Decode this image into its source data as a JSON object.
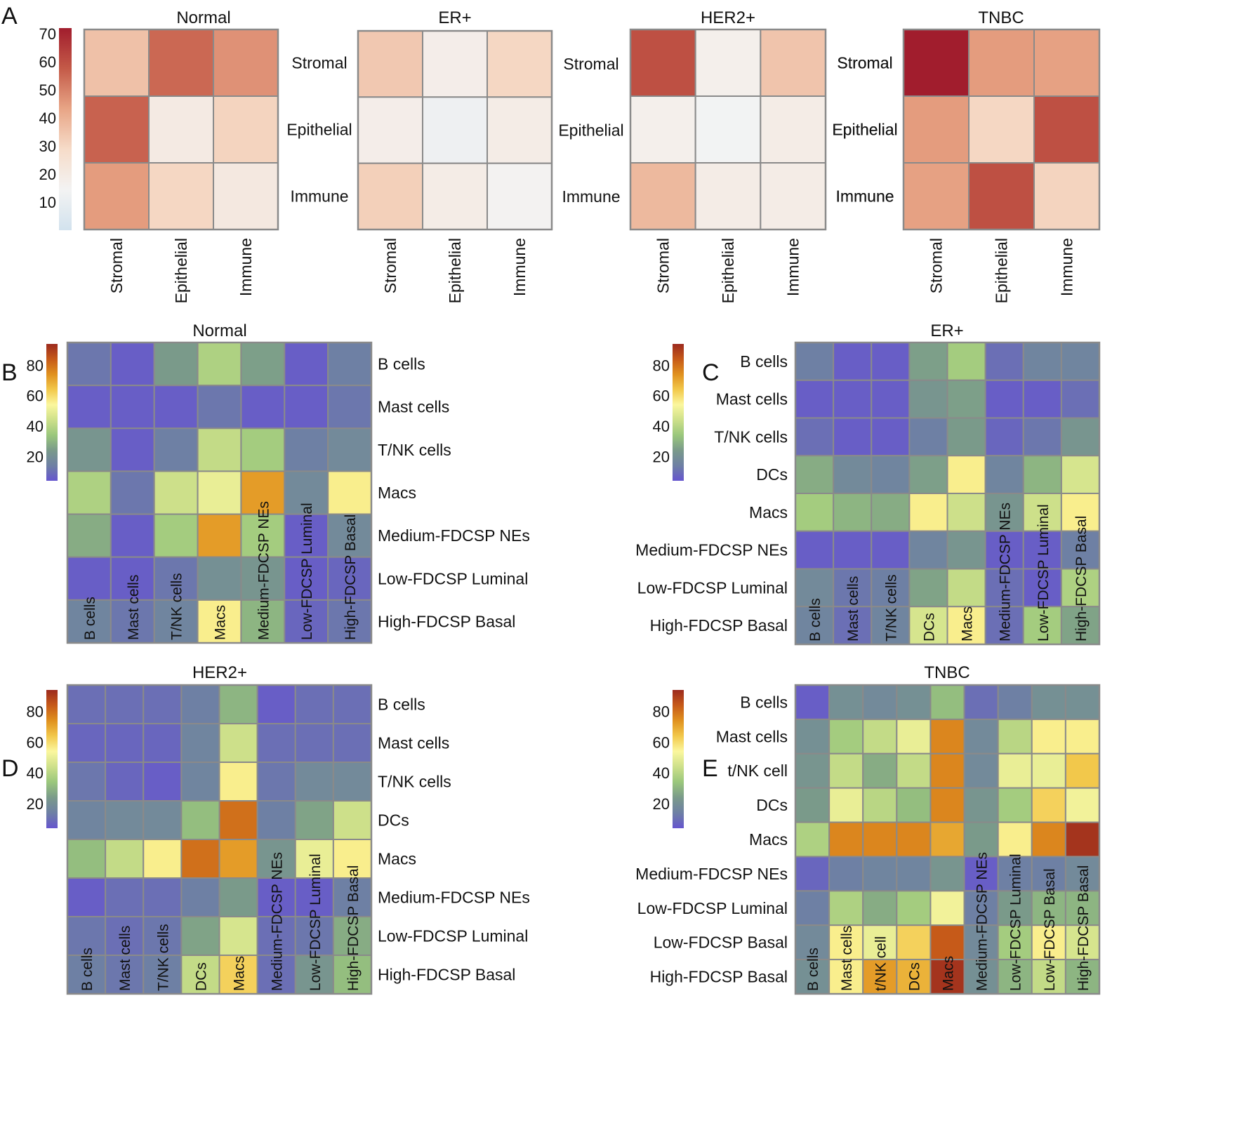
{
  "colorbar_ticks": {
    "A": [
      10,
      20,
      30,
      40,
      50,
      60,
      70
    ],
    "BCDE": [
      20,
      40,
      60,
      80
    ]
  },
  "chart_data": [
    {
      "type": "heatmap",
      "panel": "A",
      "title": "Normal",
      "rows": [
        "Stromal",
        "Epithelial",
        "Immune"
      ],
      "cols": [
        "Stromal",
        "Epithelial",
        "Immune"
      ],
      "values": [
        [
          36,
          55,
          47
        ],
        [
          56,
          20,
          31
        ],
        [
          45,
          30,
          21
        ]
      ],
      "colorbar": {
        "range": [
          0,
          72
        ],
        "ticks": [
          10,
          20,
          30,
          40,
          50,
          60,
          70
        ],
        "colors": [
          "#d2e2ee",
          "#f3f3f3",
          "#f6dcc9",
          "#e8a586",
          "#c45a48",
          "#a11d2d"
        ]
      }
    },
    {
      "type": "heatmap",
      "panel": "A",
      "title": "ER+",
      "rows": [
        "Stromal",
        "Epithelial",
        "Immune"
      ],
      "cols": [
        "Stromal",
        "Epithelial",
        "Immune"
      ],
      "values": [
        [
          34,
          18,
          30
        ],
        [
          18,
          12,
          19
        ],
        [
          32,
          19,
          15
        ]
      ],
      "colorbar": {
        "range": [
          0,
          72
        ],
        "colors": [
          "#d2e2ee",
          "#f3f3f3",
          "#f6dcc9",
          "#e8a586",
          "#c45a48",
          "#a11d2d"
        ]
      }
    },
    {
      "type": "heatmap",
      "panel": "A",
      "title": "HER2+",
      "rows": [
        "Stromal",
        "Epithelial",
        "Immune"
      ],
      "cols": [
        "Stromal",
        "Epithelial",
        "Immune"
      ],
      "values": [
        [
          60,
          17,
          35
        ],
        [
          17,
          14,
          19
        ],
        [
          38,
          19,
          19
        ]
      ],
      "colorbar": {
        "range": [
          0,
          72
        ],
        "colors": [
          "#d2e2ee",
          "#f3f3f3",
          "#f6dcc9",
          "#e8a586",
          "#c45a48",
          "#a11d2d"
        ]
      }
    },
    {
      "type": "heatmap",
      "panel": "A",
      "title": "TNBC",
      "rows": [
        "Stromal",
        "Epithelial",
        "Immune"
      ],
      "cols": [
        "Stromal",
        "Epithelial",
        "Immune"
      ],
      "values": [
        [
          72,
          45,
          44
        ],
        [
          45,
          30,
          60
        ],
        [
          44,
          60,
          31
        ]
      ],
      "colorbar": {
        "range": [
          0,
          72
        ],
        "colors": [
          "#d2e2ee",
          "#f3f3f3",
          "#f6dcc9",
          "#e8a586",
          "#c45a48",
          "#a11d2d"
        ]
      }
    },
    {
      "type": "heatmap",
      "panel": "B",
      "title": "Normal",
      "rows": [
        "B cells",
        "Mast cells",
        "T/NK cells",
        "Macs",
        "Medium-FDCSP NEs",
        "Low-FDCSP Luminal",
        "High-FDCSP Basal"
      ],
      "cols": [
        "B cells",
        "Mast cells",
        "T/NK cells",
        "Macs",
        "Medium-FDCSP NEs",
        "Low-FDCSP Luminal",
        "High-FDCSP Basal"
      ],
      "values": [
        [
          12,
          6,
          24,
          38,
          25,
          6,
          14
        ],
        [
          6,
          6,
          6,
          12,
          6,
          6,
          12
        ],
        [
          22,
          6,
          14,
          42,
          36,
          14,
          18
        ],
        [
          38,
          12,
          44,
          50,
          72,
          18,
          56
        ],
        [
          28,
          6,
          36,
          72,
          36,
          6,
          18
        ],
        [
          6,
          6,
          12,
          20,
          22,
          6,
          8
        ],
        [
          16,
          12,
          16,
          56,
          30,
          8,
          12
        ]
      ],
      "colorbar": {
        "range": [
          4,
          94
        ],
        "ticks": [
          20,
          40,
          60,
          80
        ],
        "colors": [
          "#6655cf",
          "#6e80a4",
          "#7a9a8a",
          "#9ac77c",
          "#cde08a",
          "#fbf79e",
          "#f2c84b",
          "#e0911f",
          "#c65a19",
          "#9c2a1e"
        ]
      }
    },
    {
      "type": "heatmap",
      "panel": "C",
      "title": "ER+",
      "rows": [
        "B cells",
        "Mast cells",
        "T/NK cells",
        "DCs",
        "Macs",
        "Medium-FDCSP NEs",
        "Low-FDCSP Luminal",
        "High-FDCSP Basal"
      ],
      "cols": [
        "B cells",
        "Mast cells",
        "T/NK cells",
        "DCs",
        "Macs",
        "Medium-FDCSP NEs",
        "Low-FDCSP Luminal",
        "High-FDCSP Basal"
      ],
      "values": [
        [
          14,
          6,
          6,
          25,
          36,
          10,
          16,
          16
        ],
        [
          6,
          6,
          6,
          22,
          25,
          6,
          6,
          10
        ],
        [
          10,
          6,
          6,
          14,
          24,
          8,
          12,
          22
        ],
        [
          28,
          18,
          16,
          25,
          56,
          16,
          30,
          46
        ],
        [
          36,
          30,
          28,
          56,
          44,
          22,
          44,
          56
        ],
        [
          6,
          6,
          6,
          16,
          22,
          6,
          6,
          14
        ],
        [
          18,
          12,
          14,
          26,
          42,
          10,
          6,
          38
        ],
        [
          16,
          10,
          16,
          46,
          56,
          10,
          36,
          26
        ]
      ],
      "colorbar": {
        "range": [
          4,
          94
        ],
        "ticks": [
          20,
          40,
          60,
          80
        ],
        "colors": [
          "#6655cf",
          "#6e80a4",
          "#7a9a8a",
          "#9ac77c",
          "#cde08a",
          "#fbf79e",
          "#f2c84b",
          "#e0911f",
          "#c65a19",
          "#9c2a1e"
        ]
      }
    },
    {
      "type": "heatmap",
      "panel": "D",
      "title": "HER2+",
      "rows": [
        "B cells",
        "Mast cells",
        "T/NK cells",
        "DCs",
        "Macs",
        "Medium-FDCSP NEs",
        "Low-FDCSP Luminal",
        "High-FDCSP Basal"
      ],
      "cols": [
        "B cells",
        "Mast cells",
        "T/NK cells",
        "DCs",
        "Macs",
        "Medium-FDCSP NEs",
        "Low-FDCSP Luminal",
        "High-FDCSP Basal"
      ],
      "values": [
        [
          10,
          10,
          10,
          14,
          30,
          6,
          10,
          10
        ],
        [
          8,
          8,
          8,
          16,
          44,
          10,
          10,
          10
        ],
        [
          12,
          8,
          6,
          16,
          56,
          12,
          18,
          18
        ],
        [
          16,
          18,
          18,
          32,
          80,
          14,
          26,
          44
        ],
        [
          32,
          42,
          56,
          80,
          72,
          22,
          50,
          56
        ],
        [
          6,
          10,
          10,
          14,
          24,
          6,
          6,
          14
        ],
        [
          12,
          10,
          12,
          26,
          46,
          10,
          12,
          28
        ],
        [
          14,
          12,
          14,
          42,
          62,
          10,
          22,
          32
        ]
      ],
      "colorbar": {
        "range": [
          4,
          94
        ],
        "ticks": [
          20,
          40,
          60,
          80
        ],
        "colors": [
          "#6655cf",
          "#6e80a4",
          "#7a9a8a",
          "#9ac77c",
          "#cde08a",
          "#fbf79e",
          "#f2c84b",
          "#e0911f",
          "#c65a19",
          "#9c2a1e"
        ]
      }
    },
    {
      "type": "heatmap",
      "panel": "E",
      "title": "TNBC",
      "rows": [
        "B cells",
        "Mast cells",
        "t/NK cell",
        "DCs",
        "Macs",
        "Medium-FDCSP NEs",
        "Low-FDCSP Luminal",
        "Low-FDCSP Basal",
        "High-FDCSP Basal"
      ],
      "cols": [
        "B cells",
        "Mast cells",
        "t/NK cell",
        "DCs",
        "Macs",
        "Medium-FDCSP NEs",
        "Low-FDCSP Luminal",
        "Low-FDCSP Basal",
        "High-FDCSP Basal"
      ],
      "values": [
        [
          6,
          20,
          18,
          20,
          32,
          10,
          14,
          20,
          20
        ],
        [
          20,
          36,
          42,
          50,
          76,
          18,
          40,
          56,
          56
        ],
        [
          22,
          42,
          28,
          42,
          76,
          18,
          50,
          50,
          64
        ],
        [
          24,
          50,
          40,
          32,
          76,
          22,
          36,
          62,
          52
        ],
        [
          38,
          76,
          76,
          76,
          70,
          24,
          56,
          76,
          92
        ],
        [
          8,
          14,
          16,
          16,
          22,
          6,
          14,
          14,
          18
        ],
        [
          14,
          38,
          28,
          36,
          52,
          14,
          24,
          30,
          30
        ],
        [
          18,
          56,
          50,
          62,
          84,
          18,
          36,
          56,
          46
        ],
        [
          20,
          56,
          72,
          68,
          92,
          20,
          30,
          42,
          30
        ]
      ],
      "colorbar": {
        "range": [
          4,
          94
        ],
        "ticks": [
          20,
          40,
          60,
          80
        ],
        "colors": [
          "#6655cf",
          "#6e80a4",
          "#7a9a8a",
          "#9ac77c",
          "#cde08a",
          "#fbf79e",
          "#f2c84b",
          "#e0911f",
          "#c65a19",
          "#9c2a1e"
        ]
      }
    }
  ]
}
